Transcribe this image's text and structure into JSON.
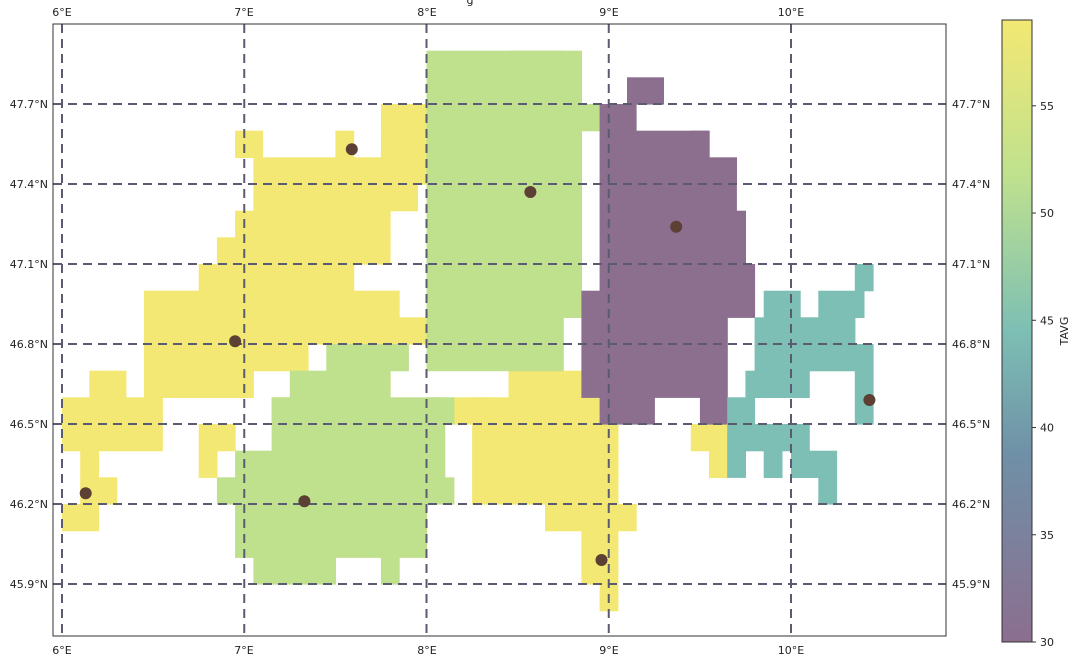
{
  "map": {
    "lon_range": [
      5.98,
      10.88
    ],
    "lat_range": [
      45.77,
      47.93
    ],
    "lon_ticks": [
      "6°E",
      "7°E",
      "8°E",
      "9°E",
      "10°E"
    ],
    "lat_ticks": [
      "45.9°N",
      "46.2°N",
      "46.5°N",
      "46.8°N",
      "47.1°N",
      "47.4°N",
      "47.7°N"
    ],
    "cell_size_deg": 0.1,
    "regions": [
      {
        "tavg": 57,
        "color": "#f3e873",
        "cells": [
          [
            6.0,
            46.1,
            0.2,
            0.1
          ],
          [
            6.1,
            46.2,
            0.1,
            0.1
          ],
          [
            6.2,
            46.2,
            0.1,
            0.1
          ],
          [
            6.1,
            46.3,
            0.1,
            0.1
          ],
          [
            6.0,
            46.4,
            0.55,
            0.1
          ],
          [
            6.0,
            46.5,
            0.55,
            0.1
          ],
          [
            6.15,
            46.6,
            0.15,
            0.1
          ],
          [
            6.25,
            46.6,
            0.1,
            0.1
          ],
          [
            6.45,
            46.6,
            0.6,
            0.1
          ],
          [
            6.45,
            46.7,
            0.9,
            0.1
          ],
          [
            6.45,
            46.8,
            1.55,
            0.1
          ],
          [
            6.45,
            46.9,
            1.4,
            0.1
          ],
          [
            6.75,
            47.0,
            0.85,
            0.1
          ],
          [
            6.85,
            47.1,
            0.95,
            0.1
          ],
          [
            6.95,
            47.2,
            0.85,
            0.1
          ],
          [
            7.05,
            47.3,
            0.9,
            0.1
          ],
          [
            7.05,
            47.4,
            0.95,
            0.1
          ],
          [
            6.95,
            47.5,
            0.15,
            0.1
          ],
          [
            7.5,
            47.5,
            0.1,
            0.1
          ],
          [
            7.75,
            47.5,
            0.25,
            0.1
          ],
          [
            7.75,
            47.6,
            0.25,
            0.1
          ],
          [
            7.65,
            46.6,
            0.15,
            0.1
          ],
          [
            7.15,
            46.5,
            0.5,
            0.1
          ],
          [
            6.75,
            46.3,
            0.1,
            0.2
          ],
          [
            6.85,
            46.4,
            0.1,
            0.1
          ],
          [
            8.25,
            46.2,
            0.8,
            0.4
          ],
          [
            8.45,
            46.6,
            0.6,
            0.1
          ],
          [
            8.65,
            46.1,
            0.5,
            0.1
          ],
          [
            8.85,
            45.9,
            0.2,
            0.2
          ],
          [
            8.95,
            45.8,
            0.1,
            0.1
          ],
          [
            8.15,
            46.5,
            0.2,
            0.1
          ],
          [
            9.45,
            46.4,
            0.2,
            0.1
          ],
          [
            9.55,
            46.3,
            0.1,
            0.1
          ]
        ]
      },
      {
        "tavg": 54,
        "color": "#bfe18e",
        "cells": [
          [
            8.0,
            46.9,
            0.85,
            1.0
          ],
          [
            8.0,
            46.7,
            0.75,
            0.2
          ],
          [
            8.1,
            47.7,
            0.7,
            0.1
          ],
          [
            8.45,
            47.8,
            0.3,
            0.1
          ],
          [
            8.0,
            47.6,
            0.2,
            0.1
          ],
          [
            8.3,
            47.6,
            0.2,
            0.1
          ],
          [
            8.65,
            47.6,
            0.1,
            0.1
          ],
          [
            8.85,
            47.6,
            0.1,
            0.1
          ],
          [
            7.25,
            46.6,
            0.55,
            0.1
          ],
          [
            7.15,
            46.4,
            0.95,
            0.2
          ],
          [
            6.95,
            46.3,
            1.15,
            0.1
          ],
          [
            6.85,
            46.2,
            1.3,
            0.1
          ],
          [
            6.95,
            46.0,
            1.05,
            0.2
          ],
          [
            7.05,
            45.9,
            0.45,
            0.1
          ],
          [
            7.75,
            45.9,
            0.1,
            0.1
          ],
          [
            7.45,
            46.7,
            0.45,
            0.1
          ],
          [
            8.0,
            46.5,
            0.15,
            0.1
          ]
        ]
      },
      {
        "tavg": 31,
        "color": "#8c6e8f",
        "cells": [
          [
            8.85,
            46.6,
            0.8,
            0.3
          ],
          [
            8.95,
            46.5,
            0.3,
            0.1
          ],
          [
            9.5,
            46.5,
            0.15,
            0.1
          ],
          [
            8.85,
            46.9,
            0.1,
            0.1
          ],
          [
            8.95,
            46.9,
            0.85,
            0.2
          ],
          [
            8.95,
            47.1,
            0.8,
            0.2
          ],
          [
            8.95,
            47.3,
            0.55,
            0.2
          ],
          [
            9.5,
            47.3,
            0.2,
            0.1
          ],
          [
            8.95,
            47.5,
            0.6,
            0.1
          ],
          [
            8.95,
            47.6,
            0.2,
            0.1
          ],
          [
            9.1,
            47.7,
            0.2,
            0.1
          ],
          [
            9.45,
            47.4,
            0.25,
            0.1
          ],
          [
            9.45,
            47.5,
            0.1,
            0.1
          ]
        ]
      },
      {
        "tavg": 43,
        "color": "#7dbfb4",
        "cells": [
          [
            9.65,
            46.5,
            0.15,
            0.1
          ],
          [
            9.65,
            46.3,
            0.1,
            0.2
          ],
          [
            9.75,
            46.4,
            0.35,
            0.1
          ],
          [
            9.75,
            46.6,
            0.35,
            0.1
          ],
          [
            9.8,
            46.7,
            0.55,
            0.1
          ],
          [
            9.8,
            46.8,
            0.55,
            0.1
          ],
          [
            9.85,
            46.9,
            0.2,
            0.1
          ],
          [
            10.15,
            46.9,
            0.25,
            0.1
          ],
          [
            10.35,
            47.0,
            0.1,
            0.1
          ],
          [
            10.35,
            46.5,
            0.1,
            0.3
          ],
          [
            10.1,
            46.3,
            0.15,
            0.1
          ],
          [
            10.15,
            46.2,
            0.1,
            0.1
          ],
          [
            9.85,
            46.3,
            0.1,
            0.1
          ],
          [
            10.0,
            46.3,
            0.1,
            0.1
          ]
        ]
      }
    ],
    "stations": [
      {
        "lon": 6.13,
        "lat": 46.24
      },
      {
        "lon": 6.95,
        "lat": 46.81
      },
      {
        "lon": 7.33,
        "lat": 46.21
      },
      {
        "lon": 7.59,
        "lat": 47.53
      },
      {
        "lon": 8.57,
        "lat": 47.37
      },
      {
        "lon": 8.96,
        "lat": 45.99
      },
      {
        "lon": 9.37,
        "lat": 47.24
      },
      {
        "lon": 10.43,
        "lat": 46.59
      }
    ],
    "station_color": "#5c4033",
    "grid_color": "#5a5a70",
    "title_fragment": "g"
  },
  "colorbar": {
    "label": "TAVG",
    "range": [
      30,
      59
    ],
    "ticks": [
      "30",
      "35",
      "40",
      "45",
      "50",
      "55"
    ],
    "tick_values": [
      30,
      35,
      40,
      45,
      50,
      55
    ],
    "stops": [
      "#8c6e8f",
      "#6f90a7",
      "#7dbfb4",
      "#bfe18e",
      "#f3e873"
    ]
  }
}
